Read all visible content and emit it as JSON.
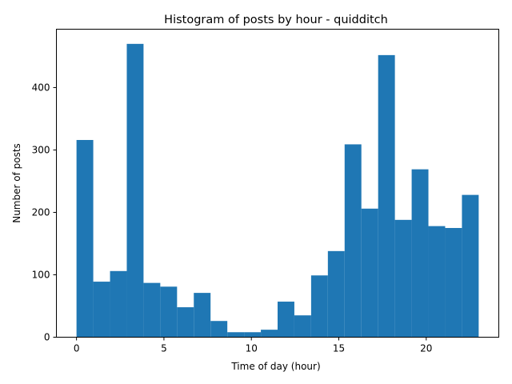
{
  "chart_data": {
    "type": "bar",
    "title": "Histogram of posts by hour - quidditch",
    "xlabel": "Time of day (hour)",
    "ylabel": "Number of posts",
    "bin_width": 0.958,
    "bins": [
      {
        "x_start": 0.0,
        "value": 316
      },
      {
        "x_start": 0.958,
        "value": 89
      },
      {
        "x_start": 1.917,
        "value": 106
      },
      {
        "x_start": 2.875,
        "value": 470
      },
      {
        "x_start": 3.833,
        "value": 87
      },
      {
        "x_start": 4.792,
        "value": 81
      },
      {
        "x_start": 5.75,
        "value": 48
      },
      {
        "x_start": 6.708,
        "value": 71
      },
      {
        "x_start": 7.667,
        "value": 26
      },
      {
        "x_start": 8.625,
        "value": 8
      },
      {
        "x_start": 9.583,
        "value": 8
      },
      {
        "x_start": 10.542,
        "value": 12
      },
      {
        "x_start": 11.5,
        "value": 57
      },
      {
        "x_start": 12.458,
        "value": 35
      },
      {
        "x_start": 13.417,
        "value": 99
      },
      {
        "x_start": 14.375,
        "value": 138
      },
      {
        "x_start": 15.333,
        "value": 309
      },
      {
        "x_start": 16.292,
        "value": 206
      },
      {
        "x_start": 17.25,
        "value": 452
      },
      {
        "x_start": 18.208,
        "value": 188
      },
      {
        "x_start": 19.167,
        "value": 269
      },
      {
        "x_start": 20.125,
        "value": 178
      },
      {
        "x_start": 21.083,
        "value": 175
      },
      {
        "x_start": 22.042,
        "value": 228
      }
    ],
    "xlim": [
      -1.15,
      24.15
    ],
    "ylim": [
      0,
      493.5
    ],
    "xticks": [
      0,
      5,
      10,
      15,
      20
    ],
    "yticks": [
      0,
      100,
      200,
      300,
      400
    ],
    "grid": false,
    "bar_color": "#1f77b4"
  }
}
